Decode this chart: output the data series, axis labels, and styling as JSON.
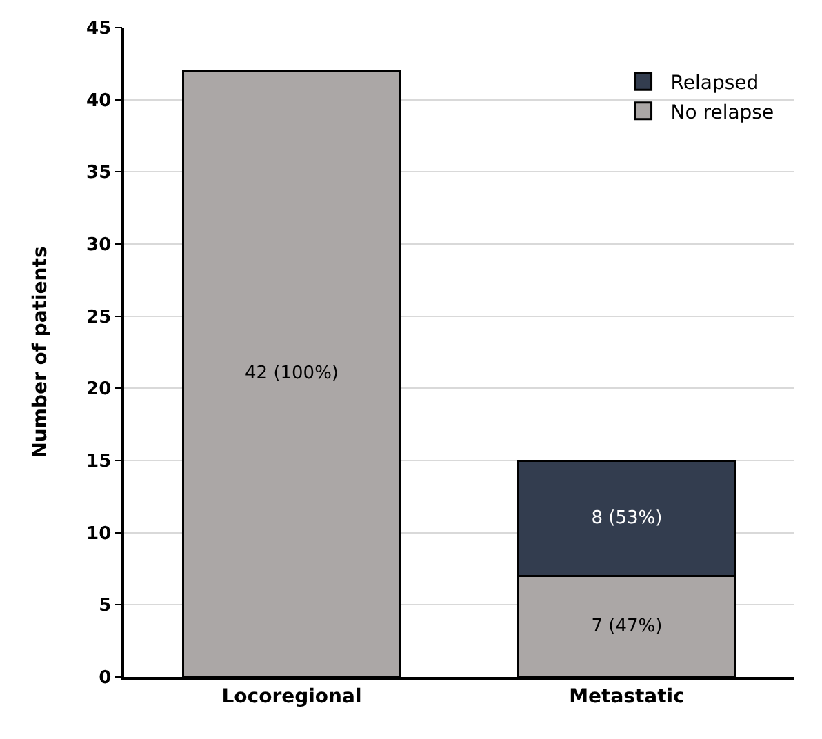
{
  "chart_data": {
    "type": "bar",
    "stacked": true,
    "ylabel": "Number of patients",
    "categories": [
      "Locoregional",
      "Metastatic"
    ],
    "series": [
      {
        "name": "No relapse",
        "color": "#aba7a6",
        "values": [
          42,
          7
        ],
        "value_labels": [
          "42 (100%)",
          "7 (47%)"
        ]
      },
      {
        "name": "Relapsed",
        "color": "#333d4f",
        "values": [
          null,
          8
        ],
        "value_labels": [
          null,
          "8 (53%)"
        ]
      }
    ],
    "ylim": [
      0,
      45
    ],
    "yticks": [
      0,
      5,
      10,
      15,
      20,
      25,
      30,
      35,
      40,
      45
    ],
    "grid": "y",
    "legend": "top right"
  }
}
